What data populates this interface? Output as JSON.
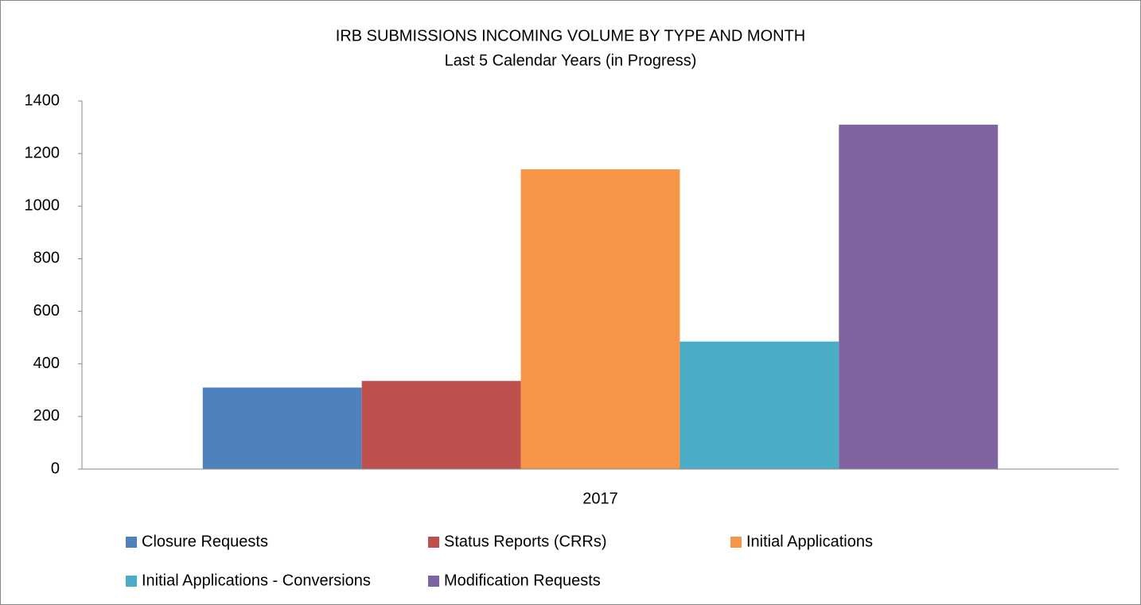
{
  "chart_data": {
    "type": "bar",
    "title": "IRB SUBMISSIONS INCOMING VOLUME BY TYPE AND MONTH",
    "subtitle": "Last 5 Calendar Years (in Progress)",
    "categories": [
      "2017"
    ],
    "series": [
      {
        "name": "Closure Requests",
        "color": "#4f81bd",
        "values": [
          310
        ]
      },
      {
        "name": "Status Reports (CRRs)",
        "color": "#c0504d",
        "values": [
          335
        ]
      },
      {
        "name": "Initial Applications",
        "color": "#f79646",
        "values": [
          1140
        ]
      },
      {
        "name": "Initial Applications - Conversions",
        "color": "#4bacc6",
        "values": [
          485
        ]
      },
      {
        "name": "Modification Requests",
        "color": "#8064a2",
        "values": [
          1310
        ]
      }
    ],
    "ylim": [
      0,
      1400
    ],
    "yticks": [
      0,
      200,
      400,
      600,
      800,
      1000,
      1200,
      1400
    ],
    "grid": false,
    "legend": "bottom"
  }
}
